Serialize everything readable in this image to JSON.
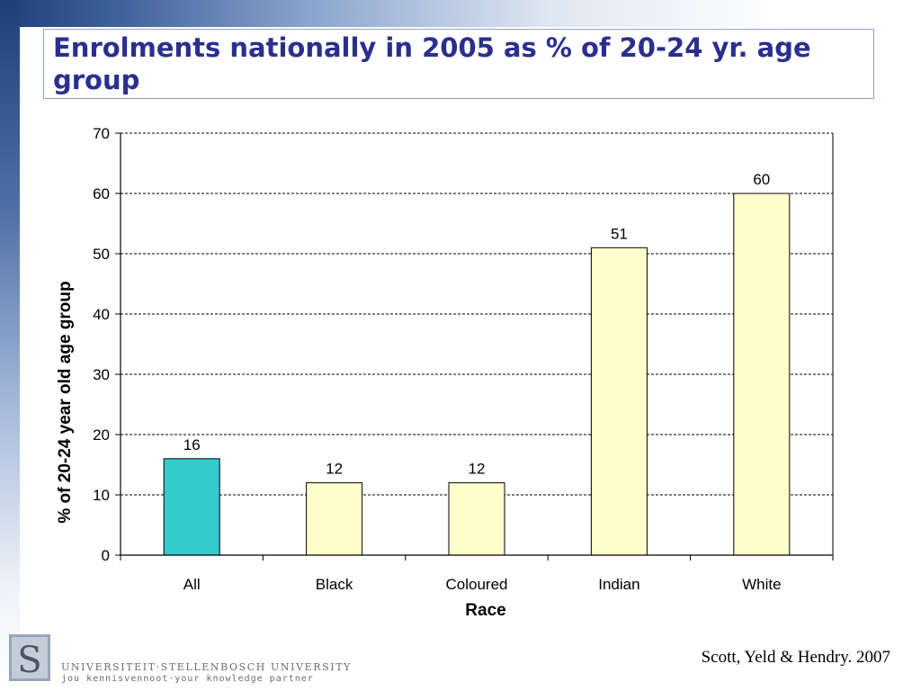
{
  "slide": {
    "title": "Enrolments nationally in 2005 as % of 20-24 yr. age group",
    "citation": "Scott, Yeld & Hendry. 2007",
    "logo": {
      "letter": "S",
      "line1": "UNIVERSITEIT·STELLENBOSCH UNIVERSITY",
      "line2": "jou kennisvennoot·your knowledge partner"
    }
  },
  "colors": {
    "title": "#2a2f8f",
    "highlight_bar": "#33cccc",
    "default_bar": "#ffffcc",
    "bar_outline": "#000000",
    "gridline": "#000000"
  },
  "chart_data": {
    "type": "bar",
    "title": "",
    "xlabel": "Race",
    "ylabel": "% of 20-24 year old age group",
    "categories": [
      "All",
      "Black",
      "Coloured",
      "Indian",
      "White"
    ],
    "values": [
      16,
      12,
      12,
      51,
      60
    ],
    "data_labels": [
      "16",
      "12",
      "12",
      "51",
      "60"
    ],
    "highlighted_category": "All",
    "ylim": [
      0,
      70
    ],
    "yticks": [
      0,
      10,
      20,
      30,
      40,
      50,
      60,
      70
    ],
    "grid": "dashed horizontal",
    "legend": "none"
  }
}
